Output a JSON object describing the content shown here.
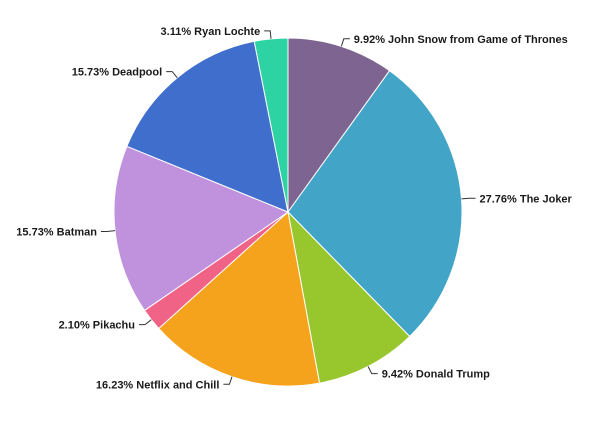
{
  "chart_data": {
    "type": "pie",
    "title": "",
    "slices": [
      {
        "label": "John Snow from Game of Thrones",
        "percent_text": "9.92%",
        "value": 9.92,
        "color": "#7e6591"
      },
      {
        "label": "The Joker",
        "percent_text": "27.76%",
        "value": 27.76,
        "color": "#42a4c6"
      },
      {
        "label": "Donald Trump",
        "percent_text": "9.42%",
        "value": 9.42,
        "color": "#97c62d"
      },
      {
        "label": "Netflix and Chill",
        "percent_text": "16.23%",
        "value": 16.23,
        "color": "#f5a31c"
      },
      {
        "label": "Pikachu",
        "percent_text": "2.10%",
        "value": 2.1,
        "color": "#f06386"
      },
      {
        "label": "Batman",
        "percent_text": "15.73%",
        "value": 15.73,
        "color": "#c092dd"
      },
      {
        "label": "Deadpool",
        "percent_text": "15.73%",
        "value": 15.73,
        "color": "#3f6ecc"
      },
      {
        "label": "Ryan Lochte",
        "percent_text": "3.11%",
        "value": 3.11,
        "color": "#2ed3a3"
      }
    ]
  }
}
